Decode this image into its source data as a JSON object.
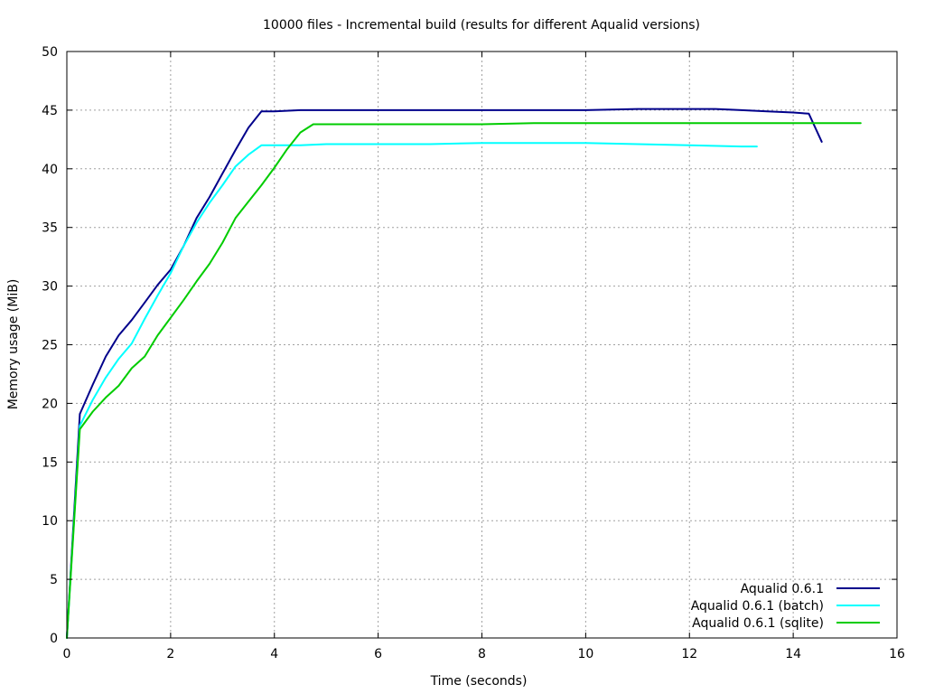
{
  "chart_data": {
    "type": "line",
    "title": "10000 files - Incremental build (results for different Aqualid versions)",
    "xlabel": "Time (seconds)",
    "ylabel": "Memory usage (MiB)",
    "xlim": [
      0,
      16
    ],
    "ylim": [
      0,
      50
    ],
    "xticks": [
      0,
      2,
      4,
      6,
      8,
      10,
      12,
      14,
      16
    ],
    "yticks": [
      0,
      5,
      10,
      15,
      20,
      25,
      30,
      35,
      40,
      45,
      50
    ],
    "grid": true,
    "legend_position": "bottom-right",
    "series": [
      {
        "name": "Aqualid 0.6.1",
        "color": "#00008b",
        "x": [
          0.0,
          0.25,
          0.5,
          0.75,
          1.0,
          1.25,
          1.5,
          1.75,
          2.0,
          2.25,
          2.5,
          2.75,
          3.0,
          3.25,
          3.5,
          3.75,
          4.0,
          4.5,
          5.0,
          6.0,
          7.0,
          8.0,
          9.0,
          10.0,
          11.0,
          12.0,
          12.5,
          13.0,
          13.5,
          14.0,
          14.3,
          14.55
        ],
        "y": [
          0.0,
          19.1,
          21.6,
          24.0,
          25.8,
          27.1,
          28.6,
          30.1,
          31.4,
          33.4,
          35.8,
          37.6,
          39.6,
          41.6,
          43.5,
          44.9,
          44.9,
          45.0,
          45.0,
          45.0,
          45.0,
          45.0,
          45.0,
          45.0,
          45.1,
          45.1,
          45.1,
          45.0,
          44.9,
          44.8,
          44.7,
          42.3
        ]
      },
      {
        "name": "Aqualid 0.6.1 (batch)",
        "color": "#00ffff",
        "x": [
          0.0,
          0.25,
          0.5,
          0.75,
          1.0,
          1.25,
          1.5,
          1.75,
          2.0,
          2.25,
          2.5,
          2.75,
          3.0,
          3.25,
          3.5,
          3.75,
          4.0,
          4.5,
          5.0,
          6.0,
          7.0,
          8.0,
          9.0,
          10.0,
          11.0,
          12.0,
          13.0,
          13.3
        ],
        "y": [
          0.0,
          18.1,
          20.3,
          22.2,
          23.8,
          25.1,
          27.2,
          29.2,
          31.1,
          33.4,
          35.4,
          37.1,
          38.6,
          40.2,
          41.2,
          42.0,
          42.0,
          42.0,
          42.1,
          42.1,
          42.1,
          42.2,
          42.2,
          42.2,
          42.1,
          42.0,
          41.9,
          41.9
        ]
      },
      {
        "name": "Aqualid 0.6.1 (sqlite)",
        "color": "#00cc00",
        "x": [
          0.0,
          0.25,
          0.5,
          0.75,
          1.0,
          1.25,
          1.5,
          1.75,
          2.0,
          2.25,
          2.5,
          2.75,
          3.0,
          3.25,
          3.5,
          3.75,
          4.0,
          4.25,
          4.5,
          4.75,
          5.0,
          6.0,
          7.0,
          8.0,
          9.0,
          10.0,
          11.0,
          12.0,
          13.0,
          14.0,
          15.0,
          15.3
        ],
        "y": [
          0.0,
          17.8,
          19.3,
          20.5,
          21.5,
          23.0,
          24.0,
          25.8,
          27.3,
          28.8,
          30.4,
          31.9,
          33.7,
          35.8,
          37.2,
          38.6,
          40.1,
          41.7,
          43.1,
          43.8,
          43.8,
          43.8,
          43.8,
          43.8,
          43.9,
          43.9,
          43.9,
          43.9,
          43.9,
          43.9,
          43.9,
          43.9
        ]
      }
    ]
  }
}
